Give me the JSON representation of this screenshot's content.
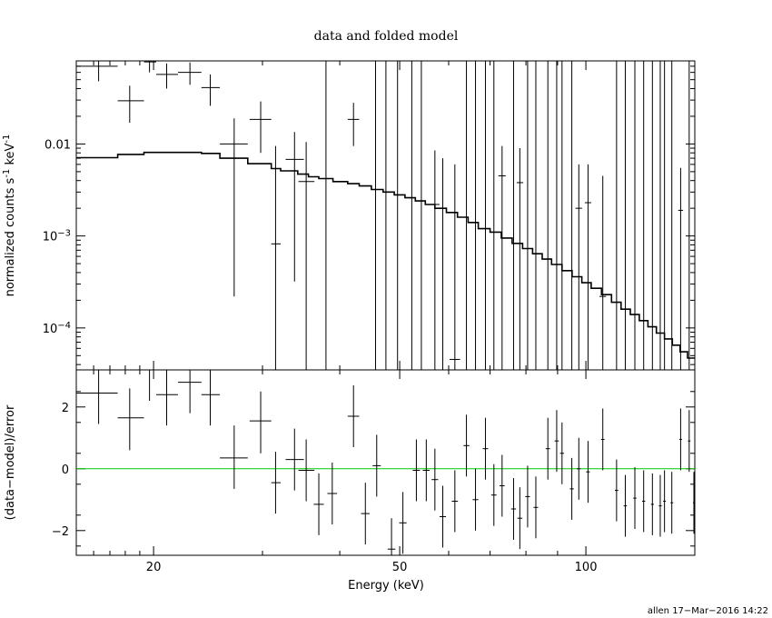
{
  "chart_data": [
    {
      "type": "scatter",
      "title": "data and folded model",
      "ylabel_parts": [
        "normalized counts s",
        "-1",
        " keV",
        "-1"
      ],
      "xlabel": "",
      "x_scale": "log",
      "y_scale": "log",
      "xlim": [
        15,
        150
      ],
      "ylim": [
        3.5e-05,
        0.08
      ],
      "yticks_major": [
        {
          "value": 0.01,
          "label": "0.01"
        },
        {
          "value": 0.001,
          "base": "10",
          "exp": "−3"
        },
        {
          "value": 0.0001,
          "base": "10",
          "exp": "−4"
        }
      ],
      "data_points": [
        {
          "x": 16.3,
          "xlo": 15.0,
          "xhi": 17.5,
          "y": 0.07,
          "ylo": 0.048,
          "yhi": 0.09
        },
        {
          "x": 18.3,
          "xlo": 17.5,
          "xhi": 19.3,
          "y": 0.0295,
          "ylo": 0.017,
          "yhi": 0.043
        },
        {
          "x": 19.7,
          "xlo": 19.3,
          "xhi": 20.2,
          "y": 0.078,
          "ylo": 0.06,
          "yhi": 0.09
        },
        {
          "x": 21.0,
          "xlo": 20.2,
          "xhi": 21.9,
          "y": 0.057,
          "ylo": 0.04,
          "yhi": 0.075
        },
        {
          "x": 22.9,
          "xlo": 21.9,
          "xhi": 23.9,
          "y": 0.06,
          "ylo": 0.044,
          "yhi": 0.077
        },
        {
          "x": 24.7,
          "xlo": 23.9,
          "xhi": 25.6,
          "y": 0.041,
          "ylo": 0.026,
          "yhi": 0.057
        },
        {
          "x": 27.0,
          "xlo": 25.6,
          "xhi": 28.4,
          "y": 0.01,
          "ylo": 0.00022,
          "yhi": 0.019
        },
        {
          "x": 29.8,
          "xlo": 28.6,
          "xhi": 31.0,
          "y": 0.0185,
          "ylo": 0.008,
          "yhi": 0.029
        },
        {
          "x": 31.5,
          "xlo": 31.0,
          "xhi": 32.1,
          "y": 0.00082,
          "ylo": 2e-05,
          "yhi": 0.0095
        },
        {
          "x": 33.8,
          "xlo": 32.7,
          "xhi": 35.0,
          "y": 0.0068,
          "ylo": 0.00032,
          "yhi": 0.0135
        },
        {
          "x": 35.3,
          "xlo": 34.3,
          "xhi": 36.4,
          "y": 0.0039,
          "ylo": 2e-05,
          "yhi": 0.0105
        },
        {
          "x": 42.1,
          "xlo": 41.2,
          "xhi": 43.0,
          "y": 0.0185,
          "ylo": 0.0095,
          "yhi": 0.028
        },
        {
          "x": 57.0,
          "xlo": 55.9,
          "xhi": 58.0,
          "y": 0.0022,
          "ylo": 2e-05,
          "yhi": 0.0085
        },
        {
          "x": 58.7,
          "xlo": 58.0,
          "xhi": 59.5,
          "y": 0.002,
          "ylo": 2e-05,
          "yhi": 0.007
        },
        {
          "x": 61.4,
          "xlo": 60.2,
          "xhi": 62.6,
          "y": 4.55e-05,
          "ylo": 2e-05,
          "yhi": 0.006
        },
        {
          "x": 73.2,
          "xlo": 72.2,
          "xhi": 74.2,
          "y": 0.0045,
          "ylo": 2e-05,
          "yhi": 0.0095
        },
        {
          "x": 78.2,
          "xlo": 77.3,
          "xhi": 79.2,
          "y": 0.0038,
          "ylo": 2e-05,
          "yhi": 0.009
        },
        {
          "x": 97.4,
          "xlo": 96.2,
          "xhi": 98.6,
          "y": 0.002,
          "ylo": 2e-05,
          "yhi": 0.006
        },
        {
          "x": 100.8,
          "xlo": 99.6,
          "xhi": 102.0,
          "y": 0.0023,
          "ylo": 2e-05,
          "yhi": 0.006
        },
        {
          "x": 106.5,
          "xlo": 105.2,
          "xhi": 107.8,
          "y": 0.00022,
          "ylo": 2e-05,
          "yhi": 0.0045
        },
        {
          "x": 142.3,
          "xlo": 141.0,
          "xhi": 143.6,
          "y": 0.0019,
          "ylo": 2e-05,
          "yhi": 0.0055
        }
      ],
      "upper_limit_x": [
        38.0,
        45.7,
        47.5,
        49.6,
        52.3,
        54.2,
        64.1,
        66.3,
        68.8,
        71.0,
        76.4,
        80.5,
        83.0,
        86.8,
        89.7,
        91.5,
        94.9,
        112.1,
        115.8,
        120.0,
        124.0,
        128.1,
        131.9,
        134.0,
        137.7,
        146.9,
        150.0
      ],
      "model_step": [
        [
          15.0,
          0.0071
        ],
        [
          17.5,
          0.0077
        ],
        [
          19.3,
          0.0081
        ],
        [
          20.2,
          0.0081
        ],
        [
          21.9,
          0.0081
        ],
        [
          23.9,
          0.0079
        ],
        [
          25.6,
          0.007
        ],
        [
          28.4,
          0.0061
        ],
        [
          31.0,
          0.0054
        ],
        [
          32.1,
          0.0051
        ],
        [
          34.2,
          0.0047
        ],
        [
          35.6,
          0.0044
        ],
        [
          37.0,
          0.0042
        ],
        [
          39.0,
          0.0039
        ],
        [
          41.2,
          0.0037
        ],
        [
          43.0,
          0.0035
        ],
        [
          45.0,
          0.0032
        ],
        [
          47.0,
          0.003
        ],
        [
          49.0,
          0.0028
        ],
        [
          51.0,
          0.0026
        ],
        [
          53.0,
          0.0024
        ],
        [
          55.0,
          0.0022
        ],
        [
          57.0,
          0.002
        ],
        [
          59.5,
          0.0018
        ],
        [
          62.0,
          0.0016
        ],
        [
          64.5,
          0.0014
        ],
        [
          67.0,
          0.0012
        ],
        [
          70.0,
          0.0011
        ],
        [
          73.0,
          0.00095
        ],
        [
          76.0,
          0.00083
        ],
        [
          79.0,
          0.00073
        ],
        [
          82.0,
          0.00064
        ],
        [
          85.0,
          0.00056
        ],
        [
          88.0,
          0.00049
        ],
        [
          91.5,
          0.00042
        ],
        [
          95.0,
          0.00036
        ],
        [
          98.5,
          0.00031
        ],
        [
          102.0,
          0.00027
        ],
        [
          106.0,
          0.00023
        ],
        [
          110.0,
          0.00019
        ],
        [
          114.0,
          0.00016
        ],
        [
          118.0,
          0.00014
        ],
        [
          122.0,
          0.00012
        ],
        [
          126.0,
          0.000103
        ],
        [
          130.0,
          8.8e-05
        ],
        [
          134.0,
          7.6e-05
        ],
        [
          138.0,
          6.5e-05
        ],
        [
          142.0,
          5.5e-05
        ],
        [
          146.0,
          4.7e-05
        ],
        [
          150.0,
          4.2e-05
        ]
      ]
    },
    {
      "type": "scatter",
      "title": "",
      "ylabel": "(data−model)/error",
      "xlabel": "Energy (keV)",
      "x_scale": "log",
      "xlim": [
        15,
        150
      ],
      "ylim": [
        -2.8,
        3.2
      ],
      "yticks": [
        2,
        0,
        -2
      ],
      "xticks": [
        20,
        50,
        100
      ],
      "zero_line_color": "#00cc00",
      "residuals": [
        {
          "x": 16.3,
          "xlo": 15.0,
          "xhi": 17.5,
          "y": 2.45,
          "ylo": 1.45,
          "yhi": 3.2
        },
        {
          "x": 18.3,
          "xlo": 17.5,
          "xhi": 19.3,
          "y": 1.65,
          "ylo": 0.6,
          "yhi": 2.6
        },
        {
          "x": 19.7,
          "xlo": 19.3,
          "xhi": 20.2,
          "y": 3.2,
          "ylo": 2.2,
          "yhi": 3.2
        },
        {
          "x": 21.0,
          "xlo": 20.2,
          "xhi": 21.9,
          "y": 2.4,
          "ylo": 1.4,
          "yhi": 3.2
        },
        {
          "x": 22.9,
          "xlo": 21.9,
          "xhi": 23.9,
          "y": 2.8,
          "ylo": 1.8,
          "yhi": 3.2
        },
        {
          "x": 24.7,
          "xlo": 23.9,
          "xhi": 25.6,
          "y": 2.4,
          "ylo": 1.4,
          "yhi": 3.2
        },
        {
          "x": 27.0,
          "xlo": 25.6,
          "xhi": 28.4,
          "y": 0.35,
          "ylo": -0.65,
          "yhi": 1.4
        },
        {
          "x": 29.8,
          "xlo": 28.6,
          "xhi": 31.0,
          "y": 1.55,
          "ylo": 0.5,
          "yhi": 2.5
        },
        {
          "x": 31.5,
          "xlo": 31.0,
          "xhi": 32.1,
          "y": -0.45,
          "ylo": -1.45,
          "yhi": 0.55
        },
        {
          "x": 33.8,
          "xlo": 32.7,
          "xhi": 35.0,
          "y": 0.3,
          "ylo": -0.7,
          "yhi": 1.3
        },
        {
          "x": 35.3,
          "xlo": 34.3,
          "xhi": 36.4,
          "y": -0.05,
          "ylo": -1.05,
          "yhi": 0.95
        },
        {
          "x": 37.0,
          "xlo": 36.3,
          "xhi": 37.7,
          "y": -1.15,
          "ylo": -2.15,
          "yhi": -0.15
        },
        {
          "x": 38.9,
          "xlo": 38.2,
          "xhi": 39.6,
          "y": -0.8,
          "ylo": -1.8,
          "yhi": 0.2
        },
        {
          "x": 42.1,
          "xlo": 41.2,
          "xhi": 43.0,
          "y": 1.7,
          "ylo": 0.7,
          "yhi": 2.7
        },
        {
          "x": 44.0,
          "xlo": 43.3,
          "xhi": 44.7,
          "y": -1.45,
          "ylo": -2.45,
          "yhi": -0.45
        },
        {
          "x": 45.9,
          "xlo": 45.2,
          "xhi": 46.6,
          "y": 0.1,
          "ylo": -0.9,
          "yhi": 1.1
        },
        {
          "x": 48.5,
          "xlo": 47.8,
          "xhi": 49.2,
          "y": -2.6,
          "ylo": -2.8,
          "yhi": -1.6
        },
        {
          "x": 50.6,
          "xlo": 49.9,
          "xhi": 51.3,
          "y": -1.75,
          "ylo": -2.75,
          "yhi": -0.75
        },
        {
          "x": 53.2,
          "xlo": 52.5,
          "xhi": 53.9,
          "y": -0.05,
          "ylo": -1.05,
          "yhi": 0.95
        },
        {
          "x": 55.2,
          "xlo": 54.5,
          "xhi": 55.9,
          "y": -0.05,
          "ylo": -1.05,
          "yhi": 0.95
        },
        {
          "x": 57.0,
          "xlo": 56.3,
          "xhi": 57.7,
          "y": -0.35,
          "ylo": -1.35,
          "yhi": 0.65
        },
        {
          "x": 58.7,
          "xlo": 58.0,
          "xhi": 59.4,
          "y": -1.55,
          "ylo": -2.55,
          "yhi": -0.55
        },
        {
          "x": 61.4,
          "xlo": 60.7,
          "xhi": 62.1,
          "y": -1.05,
          "ylo": -2.05,
          "yhi": -0.05
        },
        {
          "x": 64.1,
          "xlo": 63.4,
          "xhi": 64.8,
          "y": 0.75,
          "ylo": -0.25,
          "yhi": 1.75
        },
        {
          "x": 66.3,
          "xlo": 65.6,
          "xhi": 67.0,
          "y": -1.0,
          "ylo": -2.0,
          "yhi": 0.0
        },
        {
          "x": 68.8,
          "xlo": 68.1,
          "xhi": 69.5,
          "y": 0.65,
          "ylo": -0.35,
          "yhi": 1.65
        },
        {
          "x": 71.0,
          "xlo": 70.3,
          "xhi": 71.7,
          "y": -0.85,
          "ylo": -1.85,
          "yhi": 0.15
        },
        {
          "x": 73.2,
          "xlo": 72.5,
          "xhi": 73.9,
          "y": -0.55,
          "ylo": -1.55,
          "yhi": 0.45
        },
        {
          "x": 76.4,
          "xlo": 75.7,
          "xhi": 77.1,
          "y": -1.3,
          "ylo": -2.3,
          "yhi": -0.3
        },
        {
          "x": 78.2,
          "xlo": 77.5,
          "xhi": 78.9,
          "y": -1.6,
          "ylo": -2.6,
          "yhi": -0.6
        },
        {
          "x": 80.5,
          "xlo": 79.8,
          "xhi": 81.2,
          "y": -0.9,
          "ylo": -1.9,
          "yhi": 0.1
        },
        {
          "x": 83.0,
          "xlo": 82.3,
          "xhi": 83.7,
          "y": -1.25,
          "ylo": -2.25,
          "yhi": -0.25
        },
        {
          "x": 86.8,
          "xlo": 86.1,
          "xhi": 87.5,
          "y": 0.65,
          "ylo": -0.35,
          "yhi": 1.65
        },
        {
          "x": 89.7,
          "xlo": 89.0,
          "xhi": 90.4,
          "y": 0.9,
          "ylo": -0.1,
          "yhi": 1.9
        },
        {
          "x": 91.5,
          "xlo": 90.8,
          "xhi": 92.2,
          "y": 0.5,
          "ylo": -0.5,
          "yhi": 1.5
        },
        {
          "x": 94.9,
          "xlo": 94.2,
          "xhi": 95.6,
          "y": -0.65,
          "ylo": -1.65,
          "yhi": 0.35
        },
        {
          "x": 97.4,
          "xlo": 96.7,
          "xhi": 98.1,
          "y": 0.0,
          "ylo": -1.0,
          "yhi": 1.0
        },
        {
          "x": 100.8,
          "xlo": 100.1,
          "xhi": 101.5,
          "y": -0.1,
          "ylo": -1.1,
          "yhi": 0.9
        },
        {
          "x": 106.5,
          "xlo": 105.8,
          "xhi": 107.2,
          "y": 0.95,
          "ylo": -0.05,
          "yhi": 1.95
        },
        {
          "x": 112.1,
          "xlo": 111.4,
          "xhi": 112.8,
          "y": -0.7,
          "ylo": -1.7,
          "yhi": 0.3
        },
        {
          "x": 115.8,
          "xlo": 115.1,
          "xhi": 116.5,
          "y": -1.2,
          "ylo": -2.2,
          "yhi": -0.2
        },
        {
          "x": 120.0,
          "xlo": 119.3,
          "xhi": 120.7,
          "y": -0.95,
          "ylo": -1.95,
          "yhi": 0.05
        },
        {
          "x": 124.0,
          "xlo": 123.3,
          "xhi": 124.7,
          "y": -1.05,
          "ylo": -2.05,
          "yhi": -0.05
        },
        {
          "x": 128.1,
          "xlo": 127.4,
          "xhi": 128.8,
          "y": -1.15,
          "ylo": -2.15,
          "yhi": -0.15
        },
        {
          "x": 131.9,
          "xlo": 131.2,
          "xhi": 132.6,
          "y": -1.2,
          "ylo": -2.2,
          "yhi": -0.2
        },
        {
          "x": 134.0,
          "xlo": 133.3,
          "xhi": 134.7,
          "y": -1.05,
          "ylo": -2.05,
          "yhi": -0.05
        },
        {
          "x": 137.7,
          "xlo": 137.0,
          "xhi": 138.4,
          "y": -1.1,
          "ylo": -2.1,
          "yhi": -0.1
        },
        {
          "x": 142.3,
          "xlo": 141.6,
          "xhi": 143.0,
          "y": 0.95,
          "ylo": -0.05,
          "yhi": 1.95
        },
        {
          "x": 146.9,
          "xlo": 146.2,
          "xhi": 147.6,
          "y": 0.9,
          "ylo": -0.1,
          "yhi": 1.9
        },
        {
          "x": 149.5,
          "xlo": 149.0,
          "xhi": 150.0,
          "y": -1.1,
          "ylo": -2.1,
          "yhi": -0.1
        }
      ]
    }
  ],
  "footer": "allen 17−Mar−2016 14:22"
}
